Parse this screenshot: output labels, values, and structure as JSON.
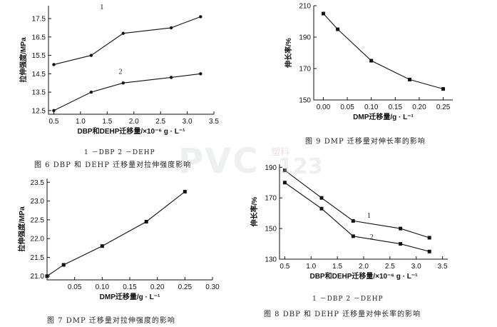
{
  "watermark": {
    "text": "PVC",
    "cn": "塑料",
    "num": "123"
  },
  "chart_data": [
    {
      "id": "fig6",
      "type": "line",
      "caption": "图 6    DBP 和 DEHP 迁移量对拉伸强度影响",
      "legend_text": "1 －DBP   2 －DEHP",
      "xlabel": "DBP和DEHP迁移量/×10⁻⁶ g · L⁻¹",
      "ylabel": "拉伸强度/MPa",
      "xlim": [
        0.4,
        3.5
      ],
      "ylim": [
        12.3,
        18.2
      ],
      "xticks": [
        0.5,
        1.0,
        1.5,
        2.0,
        2.5,
        3.0,
        3.5
      ],
      "yticks": [
        12.5,
        13.5,
        14.5,
        15.5,
        16.5,
        17.5
      ],
      "marker": "circle",
      "series": [
        {
          "name": "1",
          "x": [
            0.5,
            1.2,
            1.8,
            2.7,
            3.25
          ],
          "values": [
            15.0,
            15.5,
            16.7,
            17.0,
            17.6
          ]
        },
        {
          "name": "2",
          "x": [
            0.5,
            1.2,
            1.8,
            2.7,
            3.25
          ],
          "values": [
            12.5,
            13.5,
            14.0,
            14.3,
            14.5
          ]
        }
      ]
    },
    {
      "id": "fig9",
      "type": "line",
      "caption": "图 9    DMP 迁移量对伸长率的影响",
      "legend_text": "",
      "xlabel": "DMP迁移量/g · L⁻¹",
      "ylabel": "伸长率/%",
      "xlim": [
        -0.02,
        0.27
      ],
      "ylim": [
        150,
        210
      ],
      "xticks": [
        0.0,
        0.05,
        0.1,
        0.15,
        0.2,
        0.25
      ],
      "yticks": [
        150,
        170,
        190,
        210
      ],
      "marker": "square",
      "series": [
        {
          "name": "",
          "x": [
            0.0,
            0.03,
            0.1,
            0.18,
            0.25
          ],
          "values": [
            205,
            195,
            175,
            163,
            157
          ]
        }
      ]
    },
    {
      "id": "fig7",
      "type": "line",
      "caption": "图 7    DMP 迁移量对拉伸强度的影响",
      "legend_text": "",
      "xlabel": "DMP迁移量/g · L⁻¹",
      "ylabel": "拉伸强度/MPa",
      "xlim": [
        0.0,
        0.3
      ],
      "ylim": [
        20.9,
        23.6
      ],
      "xticks": [
        0.05,
        0.1,
        0.15,
        0.2,
        0.25,
        0.3
      ],
      "yticks": [
        21.0,
        21.5,
        22.0,
        22.5,
        23.0,
        23.5
      ],
      "marker": "square",
      "series": [
        {
          "name": "",
          "x": [
            0.0,
            0.03,
            0.1,
            0.18,
            0.25
          ],
          "values": [
            21.0,
            21.3,
            21.8,
            22.45,
            23.25
          ]
        }
      ]
    },
    {
      "id": "fig8",
      "type": "line",
      "caption": "图 8    DBP 和 DEHP 迁移量对伸长率的影响",
      "legend_text": "1 －DBP   2 －DEHP",
      "xlabel": "DBP和DEHP迁移量/×10⁻⁶ g · L⁻¹",
      "ylabel": "伸长率/%",
      "xlim": [
        0.4,
        3.6
      ],
      "ylim": [
        130,
        192
      ],
      "xticks": [
        0.5,
        1.0,
        1.5,
        2.0,
        2.5,
        3.0,
        3.5
      ],
      "yticks": [
        130,
        150,
        170,
        190
      ],
      "marker": "square",
      "series": [
        {
          "name": "1",
          "x": [
            0.5,
            1.2,
            1.8,
            2.7,
            3.25
          ],
          "values": [
            188,
            170,
            155,
            150,
            144
          ]
        },
        {
          "name": "2",
          "x": [
            0.5,
            1.2,
            1.8,
            2.7,
            3.25
          ],
          "values": [
            180,
            163,
            145,
            140,
            135
          ]
        }
      ]
    }
  ]
}
